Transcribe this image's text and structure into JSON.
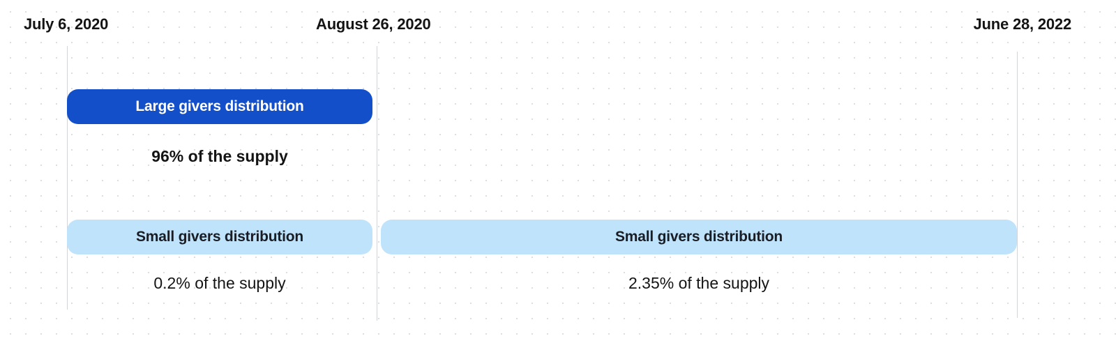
{
  "timeline": {
    "dates": [
      "July 6, 2020",
      "August 26, 2020",
      "June 28, 2022"
    ]
  },
  "distributions": {
    "large_phase1": {
      "label": "Large givers distribution",
      "share": "96% of the supply",
      "color": "#134fc8"
    },
    "small_phase1": {
      "label": "Small givers distribution",
      "share": "0.2% of the supply",
      "color": "#bee3fb"
    },
    "small_phase2": {
      "label": "Small givers distribution",
      "share": "2.35% of the supply",
      "color": "#bee3fb"
    }
  }
}
